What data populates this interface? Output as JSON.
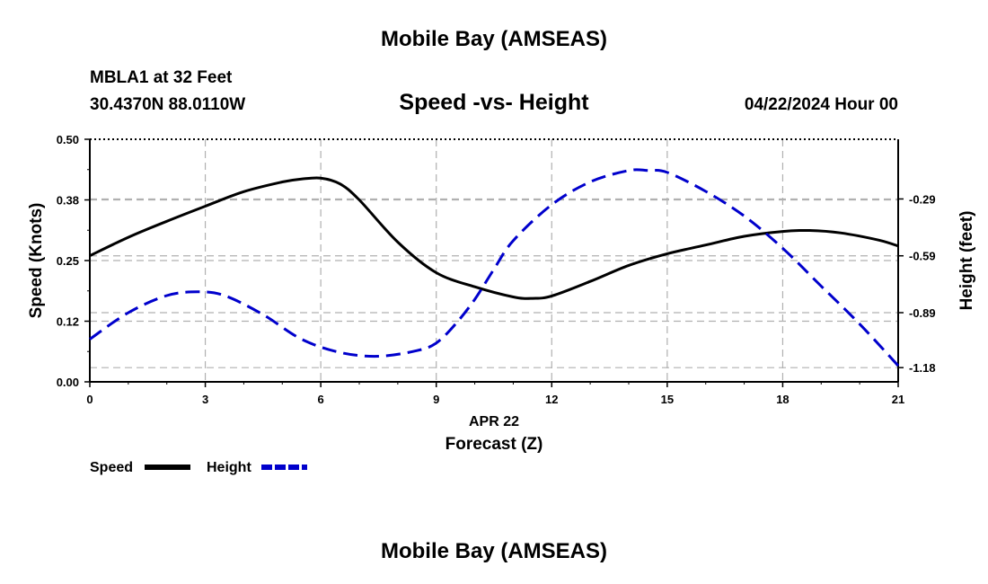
{
  "page_title": "Mobile Bay (AMSEAS)",
  "station": {
    "name_depth": "MBLA1 at 32 Feet",
    "coords": "30.4370N  88.0110W"
  },
  "run_time": "04/22/2024 Hour 00",
  "footer_title": "Mobile Bay (AMSEAS)",
  "chart_data": {
    "type": "line",
    "title": "Speed -vs- Height",
    "xlabel": "Forecast (Z)",
    "x_date_label": "APR 22",
    "ylabel_left": "Speed (Knots)",
    "ylabel_right": "Height (feet)",
    "xlim": [
      0,
      21
    ],
    "ylim_left": [
      0.0,
      0.5
    ],
    "ylim_right": [
      -1.255,
      0.025
    ],
    "x_ticks": [
      0,
      3,
      6,
      9,
      12,
      15,
      18,
      21
    ],
    "x_tick_labels": [
      "0",
      "3",
      "6",
      "9",
      "12",
      "15",
      "18",
      "21"
    ],
    "left_ticks": [
      0.0,
      0.125,
      0.25,
      0.375,
      0.5
    ],
    "left_tick_labels": [
      "0.00",
      "0.12",
      "0.25",
      "0.38",
      "0.50"
    ],
    "right_ticks": [
      -1.18,
      -0.89,
      -0.59,
      -0.29
    ],
    "right_tick_labels": [
      "-1.18",
      "-0.89",
      "-0.59",
      "-0.29"
    ],
    "grid": true,
    "legend_position": "bottom-left",
    "series": [
      {
        "name": "Speed",
        "axis": "left",
        "color": "#000000",
        "style": "solid",
        "x": [
          0,
          1,
          2,
          3,
          4,
          5,
          5.5,
          6,
          6.5,
          7,
          8,
          9,
          10,
          11,
          11.5,
          12,
          13,
          14,
          15,
          16,
          17,
          18,
          18.7,
          19.5,
          20.5,
          21
        ],
        "values": [
          0.26,
          0.298,
          0.331,
          0.362,
          0.392,
          0.412,
          0.418,
          0.42,
          0.408,
          0.375,
          0.288,
          0.225,
          0.196,
          0.175,
          0.172,
          0.177,
          0.207,
          0.24,
          0.264,
          0.282,
          0.3,
          0.31,
          0.312,
          0.307,
          0.292,
          0.28
        ]
      },
      {
        "name": "Height",
        "axis": "right",
        "color": "#0000cc",
        "style": "dashed",
        "x": [
          0,
          1,
          2,
          2.8,
          3.5,
          4.5,
          5.5,
          6.5,
          7.5,
          8.5,
          9,
          9.5,
          10,
          10.5,
          11,
          12,
          13,
          14,
          14.5,
          15,
          16,
          17,
          18,
          19,
          20,
          21
        ],
        "values": [
          -1.03,
          -0.89,
          -0.8,
          -0.78,
          -0.8,
          -0.9,
          -1.03,
          -1.1,
          -1.12,
          -1.09,
          -1.05,
          -0.95,
          -0.82,
          -0.66,
          -0.51,
          -0.32,
          -0.2,
          -0.14,
          -0.14,
          -0.15,
          -0.25,
          -0.38,
          -0.55,
          -0.75,
          -0.95,
          -1.17
        ]
      }
    ]
  }
}
